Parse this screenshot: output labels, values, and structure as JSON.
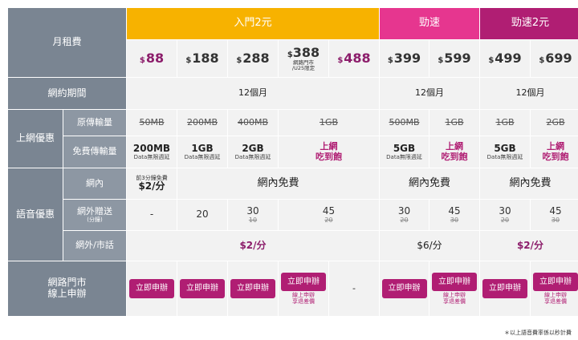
{
  "row_labels": {
    "monthly_fee": "月租費",
    "contract": "網約期間",
    "data_benefit": "上網優惠",
    "original_data": "原傳輸量",
    "free_data": "免費傳輸量",
    "voice_benefit": "語音優惠",
    "on_net": "網內",
    "off_net_gift": "網外贈送",
    "off_net_gift_sub": "(分鐘)",
    "off_net_landline": "網外/市話",
    "online_store": "網路門市\n線上申辦"
  },
  "headers": {
    "entry": "入門2元",
    "speed": "勁速",
    "speed2": "勁速2元"
  },
  "prices": [
    {
      "sym": "$",
      "val": "88",
      "accent": true
    },
    {
      "sym": "$",
      "val": "188",
      "accent": false
    },
    {
      "sym": "$",
      "val": "288",
      "accent": false
    },
    {
      "sym": "$",
      "val": "388",
      "accent": false,
      "note": "網路門市\n/U25限定"
    },
    {
      "sym": "$",
      "val": "488",
      "accent": true
    },
    {
      "sym": "$",
      "val": "399",
      "accent": false
    },
    {
      "sym": "$",
      "val": "599",
      "accent": false
    },
    {
      "sym": "$",
      "val": "499",
      "accent": false
    },
    {
      "sym": "$",
      "val": "699",
      "accent": false
    }
  ],
  "contract": {
    "entry": "12個月",
    "speed": "12個月",
    "speed2": "12個月"
  },
  "original_data": [
    "50MB",
    "200MB",
    "400MB",
    "1GB",
    "500MB",
    "1GB",
    "1GB",
    "2GB"
  ],
  "free_data": [
    {
      "amount": "200MB",
      "note": "Data無限週延"
    },
    {
      "amount": "1GB",
      "note": "Data無限週延"
    },
    {
      "amount": "2GB",
      "note": "Data無限週延"
    },
    {
      "unlimited": "上網\n吃到飽"
    },
    {
      "amount": "5GB",
      "note": "Data無限週延"
    },
    {
      "unlimited": "上網\n吃到飽"
    },
    {
      "amount": "5GB",
      "note": "Data無限週延"
    },
    {
      "unlimited": "上網\n吃到飽"
    }
  ],
  "on_net": {
    "intro_text": "前3分鐘免費",
    "intro_value": "$2/分",
    "entry_free": "網內免費",
    "speed_free": "網內免費",
    "speed2_free": "網內免費"
  },
  "off_net_gift": [
    {
      "top": "-",
      "sub": ""
    },
    {
      "top": "20",
      "sub": ""
    },
    {
      "top": "30",
      "sub": "10"
    },
    {
      "top": "45",
      "sub": "20"
    },
    {
      "top": "30",
      "sub": "20"
    },
    {
      "top": "45",
      "sub": "30"
    },
    {
      "top": "30",
      "sub": "20"
    },
    {
      "top": "45",
      "sub": "30"
    }
  ],
  "off_net_rate": {
    "entry": "$2/分",
    "speed": "$6/分",
    "speed2": "$2/分"
  },
  "apply": {
    "button_label": "立即申辦",
    "dash": "-",
    "note": "線上申辦\n享退差價"
  },
  "footnote": "＊以上語音費率係以秒計費",
  "colors": {
    "entry": "#f7b200",
    "speed": "#e6368f",
    "speed2": "#b01e73",
    "side": "#7a8592"
  }
}
